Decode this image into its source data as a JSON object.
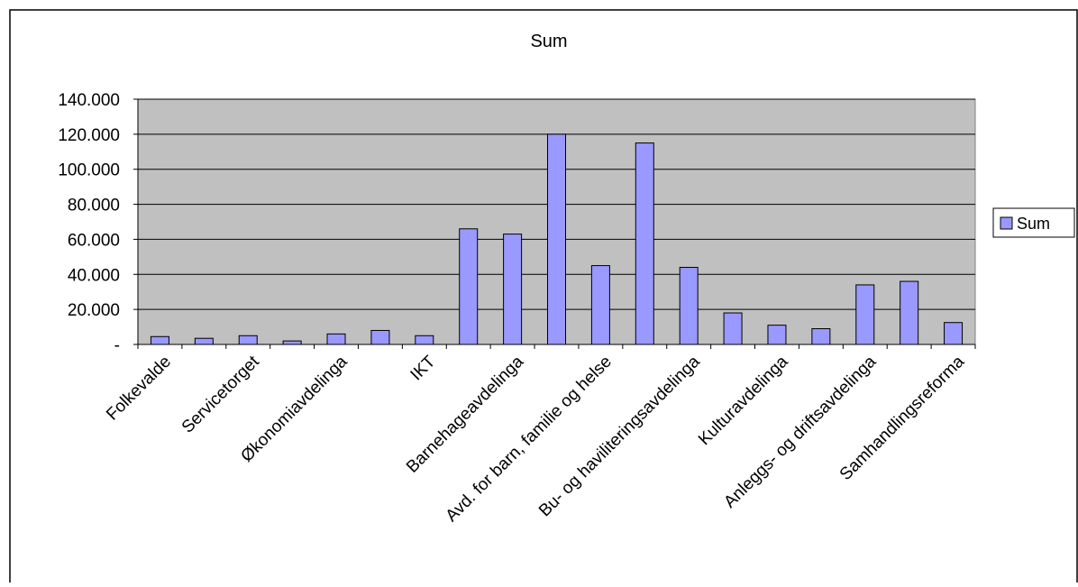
{
  "chart_data": {
    "type": "bar",
    "title": "Sum",
    "xlabel": "",
    "ylabel": "",
    "ylim": [
      0,
      140000
    ],
    "yticks": [
      {
        "value": 0,
        "label": "-"
      },
      {
        "value": 20000,
        "label": "20.000"
      },
      {
        "value": 40000,
        "label": "40.000"
      },
      {
        "value": 60000,
        "label": "60.000"
      },
      {
        "value": 80000,
        "label": "80.000"
      },
      {
        "value": 100000,
        "label": "100.000"
      },
      {
        "value": 120000,
        "label": "120.000"
      },
      {
        "value": 140000,
        "label": "140.000"
      }
    ],
    "grid": true,
    "legend": "right",
    "categories": [
      "Folkevalde",
      "",
      "Servicetorget",
      "",
      "Økonomiavdelinga",
      "",
      "IKT",
      "",
      "Barnehageavdelinga",
      "",
      "Avd. for barn, familie og helse",
      "",
      "Bu- og haviliteringsavdelinga",
      "",
      "Kulturavdelinga",
      "",
      "Anleggs- og driftsavdelinga",
      "",
      "Samhandlingsreforma"
    ],
    "series": [
      {
        "name": "Sum",
        "values": [
          4500,
          3500,
          5000,
          2000,
          6000,
          8000,
          5000,
          66000,
          63000,
          120000,
          45000,
          115000,
          44000,
          18000,
          11000,
          9000,
          34000,
          36000,
          12500
        ]
      }
    ],
    "colors": {
      "bar": "#9999ff",
      "plot_bg": "#c0c0c0",
      "grid": "#000000"
    }
  }
}
